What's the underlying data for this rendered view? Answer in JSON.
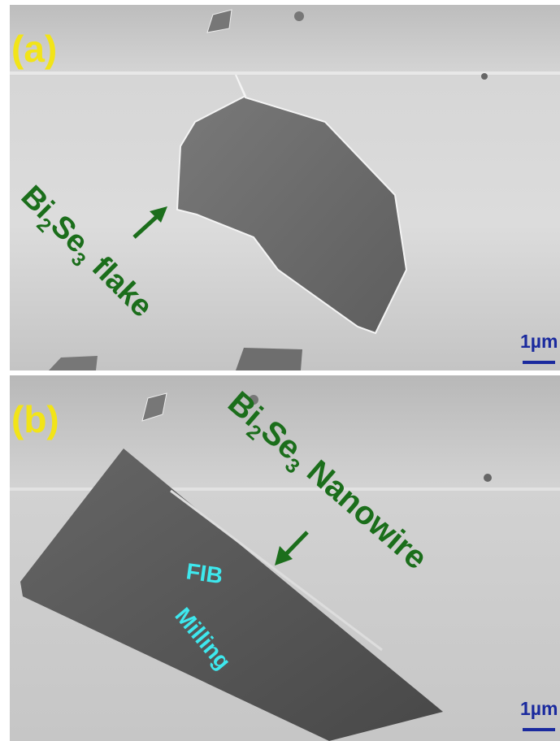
{
  "panels": [
    {
      "label": "(a)",
      "annotation": [
        "Bi",
        "2",
        "Se",
        "3",
        "flake"
      ],
      "scale_bar": "1µm"
    },
    {
      "label": "(b)",
      "annotation": [
        "Bi",
        "2",
        "Se",
        "3",
        "Nanowire"
      ],
      "milling_label": [
        "FIB",
        "Milling"
      ],
      "scale_bar": "1µm"
    }
  ]
}
